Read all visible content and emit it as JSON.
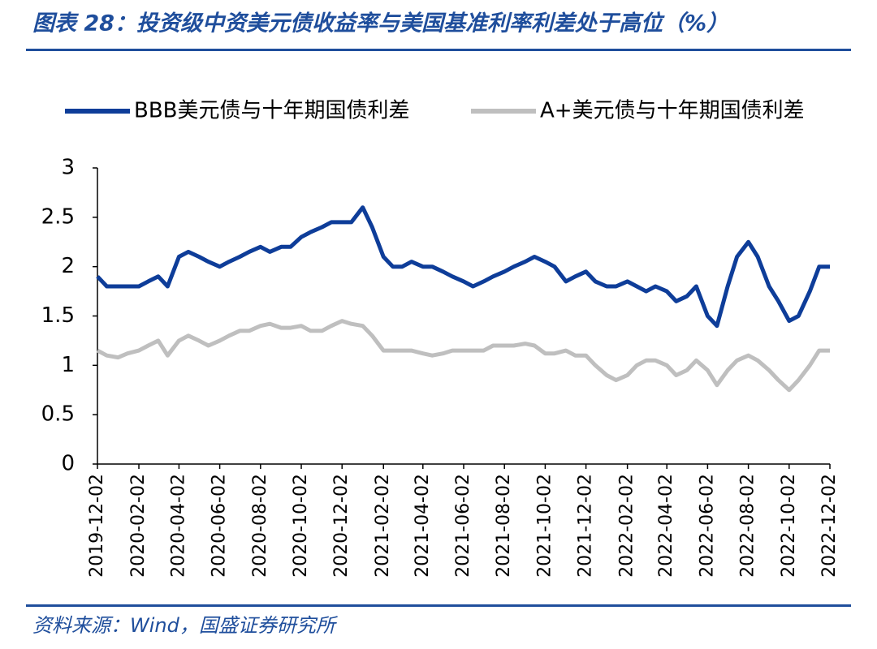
{
  "chart_data": {
    "type": "line",
    "title": "图表 28：投资级中资美元债收益率与美国基准利率利差处于高位（%）",
    "source": "资料来源：Wind，国盛证券研究所",
    "x": [
      "2019-12-02",
      "2019-12-16",
      "2020-01-02",
      "2020-01-16",
      "2020-02-02",
      "2020-02-16",
      "2020-03-02",
      "2020-03-16",
      "2020-04-02",
      "2020-04-16",
      "2020-05-02",
      "2020-05-16",
      "2020-06-02",
      "2020-06-16",
      "2020-07-02",
      "2020-07-16",
      "2020-08-02",
      "2020-08-16",
      "2020-09-02",
      "2020-09-16",
      "2020-10-02",
      "2020-10-16",
      "2020-11-02",
      "2020-11-16",
      "2020-12-02",
      "2020-12-16",
      "2021-01-02",
      "2021-01-16",
      "2021-02-02",
      "2021-02-16",
      "2021-03-02",
      "2021-03-16",
      "2021-04-02",
      "2021-04-16",
      "2021-05-02",
      "2021-05-16",
      "2021-06-02",
      "2021-06-16",
      "2021-07-02",
      "2021-07-16",
      "2021-08-02",
      "2021-08-16",
      "2021-09-02",
      "2021-09-16",
      "2021-10-02",
      "2021-10-16",
      "2021-11-02",
      "2021-11-16",
      "2021-12-02",
      "2021-12-16",
      "2022-01-02",
      "2022-01-16",
      "2022-02-02",
      "2022-02-16",
      "2022-03-02",
      "2022-03-16",
      "2022-04-02",
      "2022-04-16",
      "2022-05-02",
      "2022-05-16",
      "2022-06-02",
      "2022-06-16",
      "2022-07-02",
      "2022-07-16",
      "2022-08-02",
      "2022-08-16",
      "2022-09-02",
      "2022-09-16",
      "2022-10-02",
      "2022-10-16",
      "2022-11-02",
      "2022-11-16",
      "2022-12-02"
    ],
    "series": [
      {
        "name": "BBB美元债与十年期国债利差",
        "color": "#0e3d99",
        "values": [
          1.9,
          1.8,
          1.8,
          1.8,
          1.8,
          1.85,
          1.9,
          1.8,
          2.1,
          2.15,
          2.1,
          2.05,
          2.0,
          2.05,
          2.1,
          2.15,
          2.2,
          2.15,
          2.2,
          2.2,
          2.3,
          2.35,
          2.4,
          2.45,
          2.45,
          2.45,
          2.6,
          2.4,
          2.1,
          2.0,
          2.0,
          2.05,
          2.0,
          2.0,
          1.95,
          1.9,
          1.85,
          1.8,
          1.85,
          1.9,
          1.95,
          2.0,
          2.05,
          2.1,
          2.05,
          2.0,
          1.85,
          1.9,
          1.95,
          1.85,
          1.8,
          1.8,
          1.85,
          1.8,
          1.75,
          1.8,
          1.75,
          1.65,
          1.7,
          1.8,
          1.5,
          1.4,
          1.8,
          2.1,
          2.25,
          2.1,
          1.8,
          1.65,
          1.45,
          1.5,
          1.75,
          2.0,
          2.0
        ]
      },
      {
        "name": "A+美元债与十年期国债利差",
        "color": "#bfbfbf",
        "values": [
          1.15,
          1.1,
          1.08,
          1.12,
          1.15,
          1.2,
          1.25,
          1.1,
          1.25,
          1.3,
          1.25,
          1.2,
          1.25,
          1.3,
          1.35,
          1.35,
          1.4,
          1.42,
          1.38,
          1.38,
          1.4,
          1.35,
          1.35,
          1.4,
          1.45,
          1.42,
          1.4,
          1.3,
          1.15,
          1.15,
          1.15,
          1.15,
          1.12,
          1.1,
          1.12,
          1.15,
          1.15,
          1.15,
          1.15,
          1.2,
          1.2,
          1.2,
          1.22,
          1.2,
          1.12,
          1.12,
          1.15,
          1.1,
          1.1,
          1.0,
          0.9,
          0.85,
          0.9,
          1.0,
          1.05,
          1.05,
          1.0,
          0.9,
          0.95,
          1.05,
          0.95,
          0.8,
          0.95,
          1.05,
          1.1,
          1.05,
          0.95,
          0.85,
          0.75,
          0.85,
          1.0,
          1.15,
          1.15
        ]
      }
    ],
    "xlim": [
      "2019-12-02",
      "2022-12-02"
    ],
    "xticks": [
      "2019-12-02",
      "2020-02-02",
      "2020-04-02",
      "2020-06-02",
      "2020-08-02",
      "2020-10-02",
      "2020-12-02",
      "2021-02-02",
      "2021-04-02",
      "2021-06-02",
      "2021-08-02",
      "2021-10-02",
      "2021-12-02",
      "2022-02-02",
      "2022-04-02",
      "2022-06-02",
      "2022-08-02",
      "2022-10-02",
      "2022-12-02"
    ],
    "ylim": [
      0,
      3
    ],
    "yticks": [
      0,
      0.5,
      1,
      1.5,
      2,
      2.5,
      3
    ],
    "grid": false,
    "legend": "top"
  }
}
